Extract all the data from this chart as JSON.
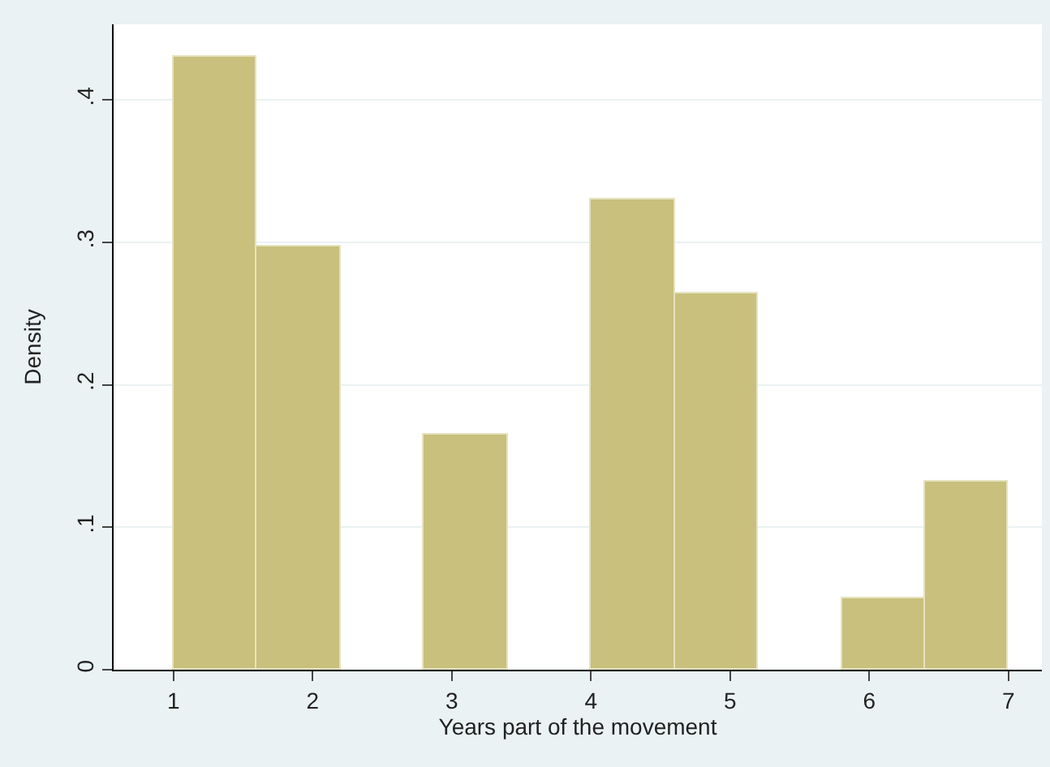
{
  "chart_data": {
    "type": "histogram",
    "xlabel": "Years part of the movement",
    "ylabel": "Density",
    "bins": [
      1,
      1.6,
      2.2,
      2.8,
      3.4,
      4.0,
      4.6,
      5.2,
      5.8,
      6.4,
      7.0
    ],
    "values": [
      0.43,
      0.297,
      0,
      0.165,
      0,
      0.33,
      0.264,
      0,
      0.05,
      0.132
    ],
    "color": "#c8c07c",
    "xlim": [
      0.57,
      7.24
    ],
    "xticks": [
      1,
      2,
      3,
      4,
      5,
      6,
      7
    ],
    "ylim": [
      0,
      0.453
    ],
    "yticks": [
      {
        "value": 0,
        "label": "0"
      },
      {
        "value": 0.1,
        "label": ".1"
      },
      {
        "value": 0.2,
        "label": ".2"
      },
      {
        "value": 0.3,
        "label": ".3"
      },
      {
        "value": 0.4,
        "label": ".4"
      }
    ],
    "grid": "y"
  }
}
